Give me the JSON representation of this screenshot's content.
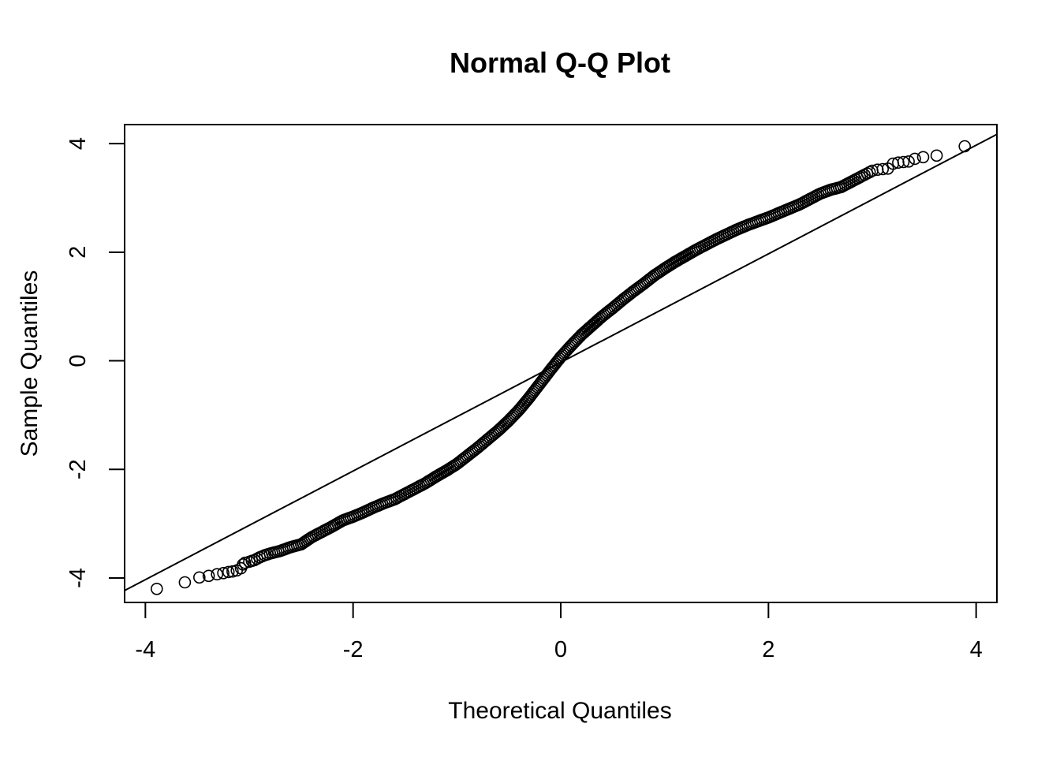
{
  "chart_data": {
    "type": "scatter",
    "title": "Normal Q-Q Plot",
    "xlabel": "Theoretical Quantiles",
    "ylabel": "Sample Quantiles",
    "xlim": [
      -4.2,
      4.2
    ],
    "ylim": [
      -4.45,
      4.35
    ],
    "x_ticks": [
      -4,
      -2,
      0,
      2,
      4
    ],
    "y_ticks": [
      -4,
      -2,
      0,
      2,
      4
    ],
    "x_tick_labels": [
      "-4",
      "-2",
      "0",
      "2",
      "4"
    ],
    "y_tick_labels": [
      "-4",
      "-2",
      "0",
      "2",
      "4"
    ],
    "grid": false,
    "legend": "none",
    "point_style": "open-circle",
    "point_color": "#000000",
    "reference_line": {
      "intercept": -0.03,
      "slope": 1.0
    },
    "series": [
      {
        "points": [
          [
            -3.89,
            -4.2
          ],
          [
            -3.62,
            -4.08
          ],
          [
            -3.48,
            -3.99
          ],
          [
            -3.39,
            -3.96
          ],
          [
            -3.31,
            -3.93
          ],
          [
            -3.25,
            -3.91
          ],
          [
            -3.2,
            -3.89
          ],
          [
            -3.16,
            -3.88
          ],
          [
            -3.12,
            -3.86
          ],
          [
            -3.08,
            -3.82
          ],
          [
            -3.06,
            -3.75
          ],
          [
            -3.04,
            -3.72
          ],
          [
            -3.0,
            -3.7
          ],
          [
            -2.95,
            -3.67
          ],
          [
            -2.9,
            -3.62
          ],
          [
            -2.85,
            -3.58
          ],
          [
            -2.8,
            -3.55
          ],
          [
            -2.7,
            -3.5
          ],
          [
            -2.6,
            -3.43
          ],
          [
            -2.5,
            -3.38
          ],
          [
            -2.4,
            -3.25
          ],
          [
            -2.3,
            -3.15
          ],
          [
            -2.2,
            -3.05
          ],
          [
            -2.1,
            -2.94
          ],
          [
            -2.0,
            -2.87
          ],
          [
            -1.9,
            -2.79
          ],
          [
            -1.8,
            -2.7
          ],
          [
            -1.7,
            -2.62
          ],
          [
            -1.6,
            -2.55
          ],
          [
            -1.5,
            -2.45
          ],
          [
            -1.4,
            -2.35
          ],
          [
            -1.3,
            -2.25
          ],
          [
            -1.2,
            -2.13
          ],
          [
            -1.1,
            -2.02
          ],
          [
            -1.0,
            -1.9
          ],
          [
            -0.9,
            -1.75
          ],
          [
            -0.8,
            -1.6
          ],
          [
            -0.7,
            -1.44
          ],
          [
            -0.6,
            -1.28
          ],
          [
            -0.5,
            -1.1
          ],
          [
            -0.4,
            -0.9
          ],
          [
            -0.3,
            -0.67
          ],
          [
            -0.2,
            -0.42
          ],
          [
            -0.1,
            -0.17
          ],
          [
            0.0,
            0.07
          ],
          [
            0.1,
            0.28
          ],
          [
            0.2,
            0.48
          ],
          [
            0.3,
            0.65
          ],
          [
            0.4,
            0.82
          ],
          [
            0.5,
            0.97
          ],
          [
            0.6,
            1.13
          ],
          [
            0.7,
            1.28
          ],
          [
            0.8,
            1.42
          ],
          [
            0.9,
            1.57
          ],
          [
            1.0,
            1.7
          ],
          [
            1.1,
            1.82
          ],
          [
            1.2,
            1.93
          ],
          [
            1.3,
            2.04
          ],
          [
            1.4,
            2.14
          ],
          [
            1.5,
            2.24
          ],
          [
            1.6,
            2.33
          ],
          [
            1.7,
            2.42
          ],
          [
            1.8,
            2.5
          ],
          [
            1.9,
            2.57
          ],
          [
            2.0,
            2.64
          ],
          [
            2.1,
            2.72
          ],
          [
            2.2,
            2.8
          ],
          [
            2.3,
            2.88
          ],
          [
            2.4,
            2.98
          ],
          [
            2.5,
            3.08
          ],
          [
            2.6,
            3.15
          ],
          [
            2.7,
            3.2
          ],
          [
            2.8,
            3.3
          ],
          [
            2.9,
            3.4
          ],
          [
            2.95,
            3.45
          ],
          [
            3.0,
            3.5
          ],
          [
            3.05,
            3.52
          ],
          [
            3.1,
            3.53
          ],
          [
            3.15,
            3.54
          ],
          [
            3.2,
            3.63
          ],
          [
            3.25,
            3.65
          ],
          [
            3.3,
            3.66
          ],
          [
            3.35,
            3.67
          ],
          [
            3.41,
            3.72
          ],
          [
            3.49,
            3.75
          ],
          [
            3.62,
            3.78
          ],
          [
            3.89,
            3.95
          ]
        ]
      }
    ]
  }
}
